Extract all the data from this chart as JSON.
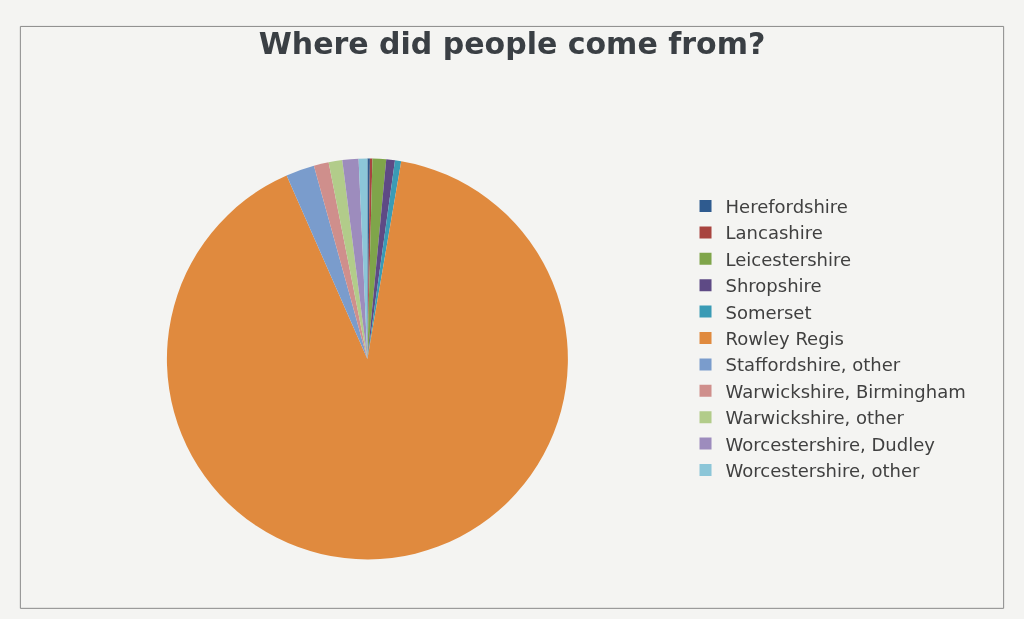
{
  "chart_data": {
    "type": "pie",
    "title": "Where did people come from?",
    "categories": [
      "Herefordshire",
      "Lancashire",
      "Leicestershire",
      "Shropshire",
      "Somerset",
      "Rowley Regis",
      "Staffordshire, other",
      "Warwickshire, Birmingham",
      "Warwickshire, other",
      "Worcestershire, Dudley",
      "Worcestershire, other"
    ],
    "values": [
      0.2,
      0.2,
      1.1,
      0.7,
      0.5,
      90.7,
      2.3,
      1.2,
      1.1,
      1.3,
      0.7
    ],
    "colors": [
      "#2f5b8f",
      "#a8443f",
      "#7fa54a",
      "#5e4a85",
      "#3a9bb5",
      "#e08a3e",
      "#7a9ccc",
      "#cf8f8c",
      "#b2cc8a",
      "#9d8cbd",
      "#8cc6d8"
    ],
    "legend": "right"
  }
}
